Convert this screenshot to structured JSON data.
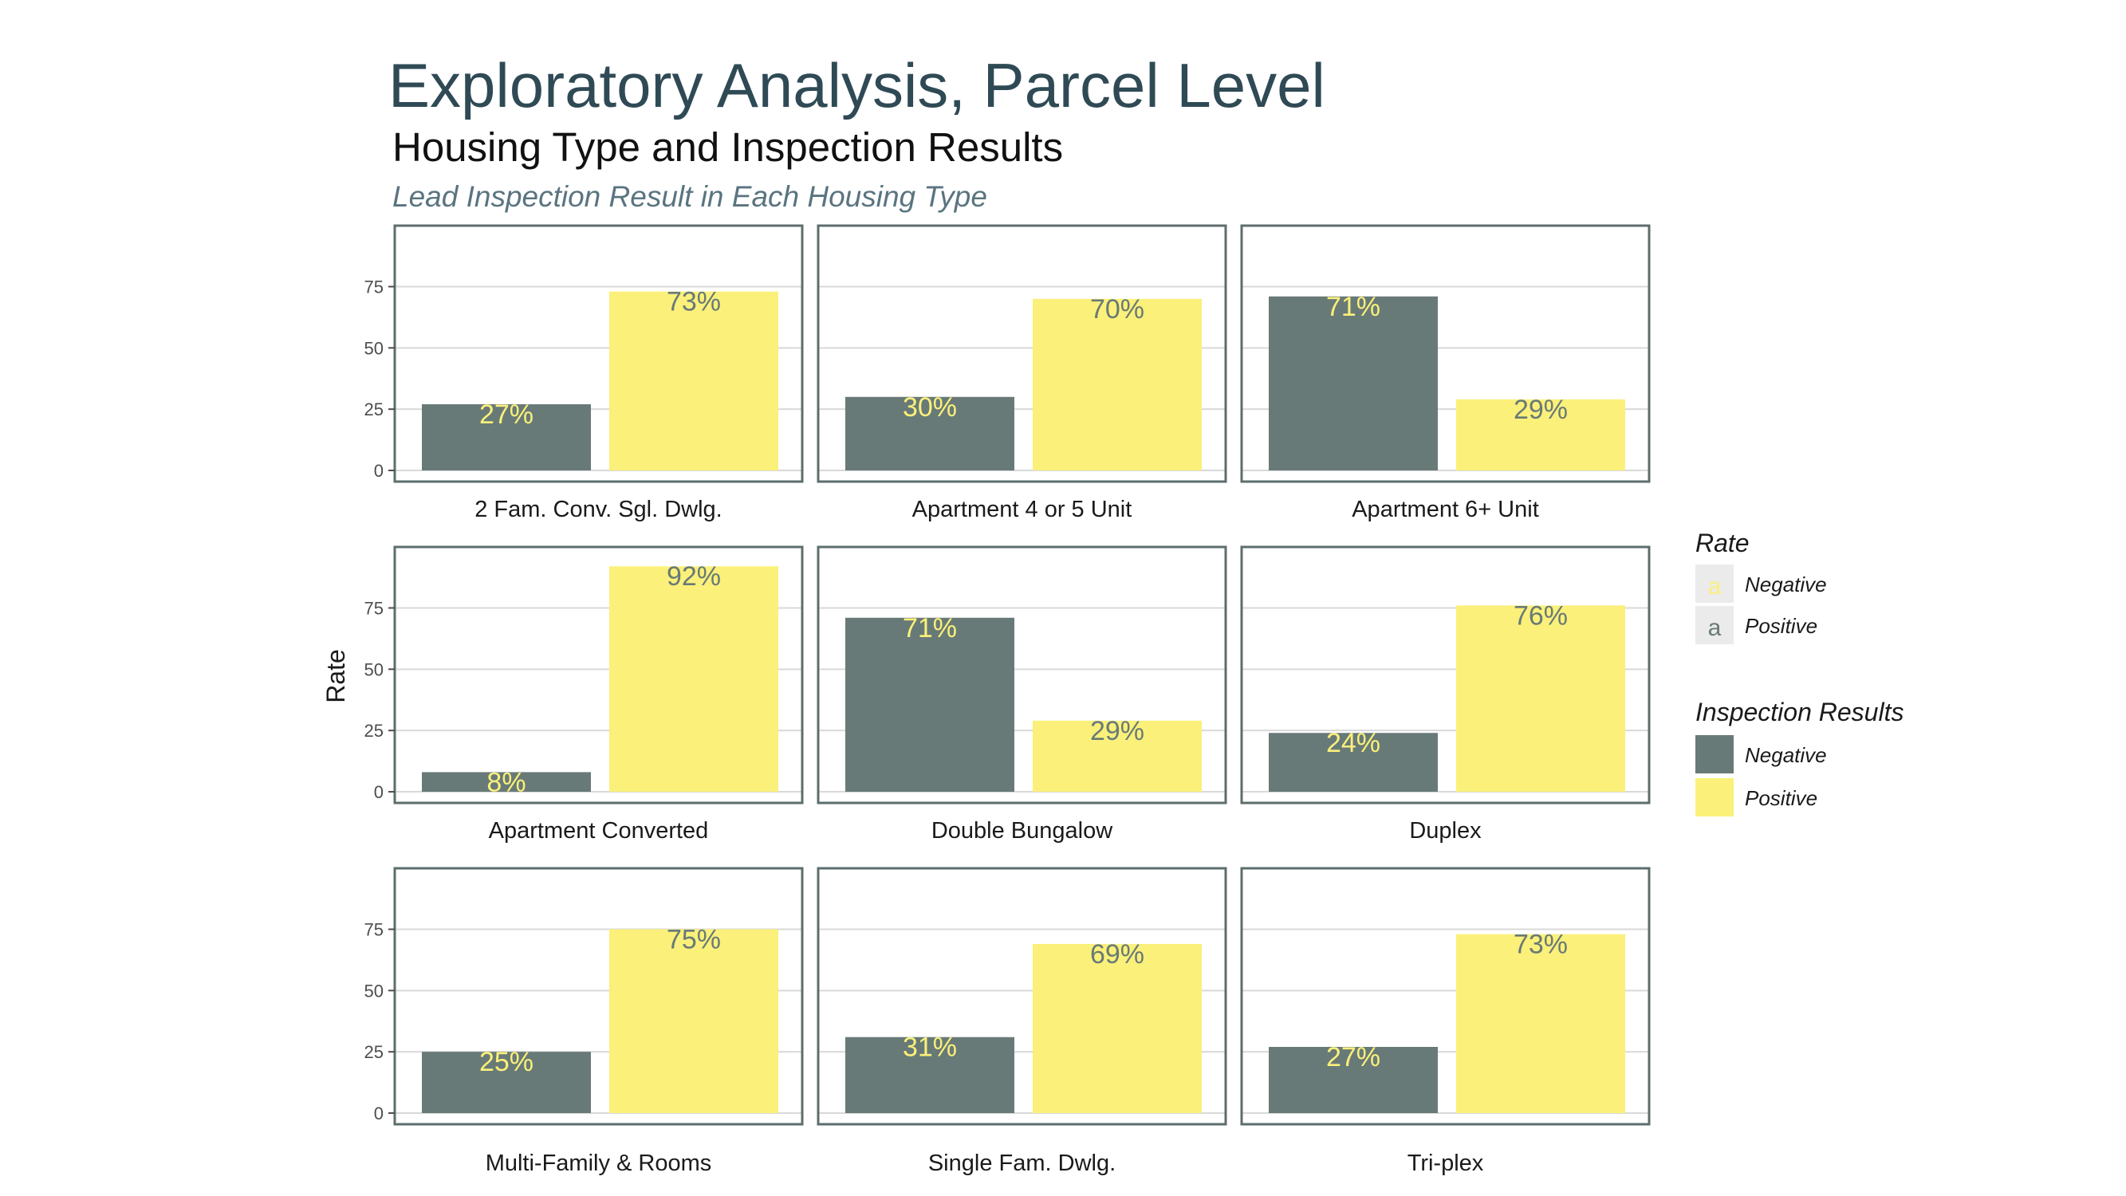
{
  "slide": {
    "title": "Exploratory Analysis, Parcel Level"
  },
  "chart_data": {
    "type": "bar",
    "title": "Housing Type and Inspection Results",
    "subtitle": "Lead Inspection Result in Each Housing Type",
    "xlabel": "",
    "ylabel": "Rate",
    "ylim": [
      0,
      95
    ],
    "yticks": [
      0,
      25,
      50,
      75
    ],
    "grid": true,
    "facets": [
      {
        "name": "2 Fam. Conv. Sgl. Dwlg.",
        "values": {
          "Negative": 27,
          "Positive": 73
        },
        "labels": [
          "27%",
          "73%"
        ]
      },
      {
        "name": "Apartment 4 or 5 Unit",
        "values": {
          "Negative": 30,
          "Positive": 70
        },
        "labels": [
          "30%",
          "70%"
        ]
      },
      {
        "name": "Apartment 6+ Unit",
        "values": {
          "Negative": 71,
          "Positive": 29
        },
        "labels": [
          "71%",
          "29%"
        ]
      },
      {
        "name": "Apartment Converted",
        "values": {
          "Negative": 8,
          "Positive": 92
        },
        "labels": [
          "8%",
          "92%"
        ]
      },
      {
        "name": "Double Bungalow",
        "values": {
          "Negative": 71,
          "Positive": 29
        },
        "labels": [
          "71%",
          "29%"
        ]
      },
      {
        "name": "Duplex",
        "values": {
          "Negative": 24,
          "Positive": 76
        },
        "labels": [
          "24%",
          "76%"
        ]
      },
      {
        "name": "Multi-Family & Rooms",
        "values": {
          "Negative": 25,
          "Positive": 75
        },
        "labels": [
          "25%",
          "75%"
        ]
      },
      {
        "name": "Single Fam. Dwlg.",
        "values": {
          "Negative": 31,
          "Positive": 69
        },
        "labels": [
          "31%",
          "69%"
        ]
      },
      {
        "name": "Tri-plex",
        "values": {
          "Negative": 27,
          "Positive": 73
        },
        "labels": [
          "27%",
          "73%"
        ]
      }
    ],
    "categories": [
      "Negative",
      "Positive"
    ],
    "colors": {
      "Negative": "#687a77",
      "Positive": "#fbf07a",
      "frame": "#5d6d6d",
      "grid": "#d9d9d9"
    },
    "legend": {
      "placement": "right",
      "rate": {
        "title": "Rate",
        "items": [
          "Negative",
          "Positive"
        ],
        "key_glyph": "a"
      },
      "results": {
        "title": "Inspection Results",
        "items": [
          "Negative",
          "Positive"
        ]
      }
    }
  }
}
